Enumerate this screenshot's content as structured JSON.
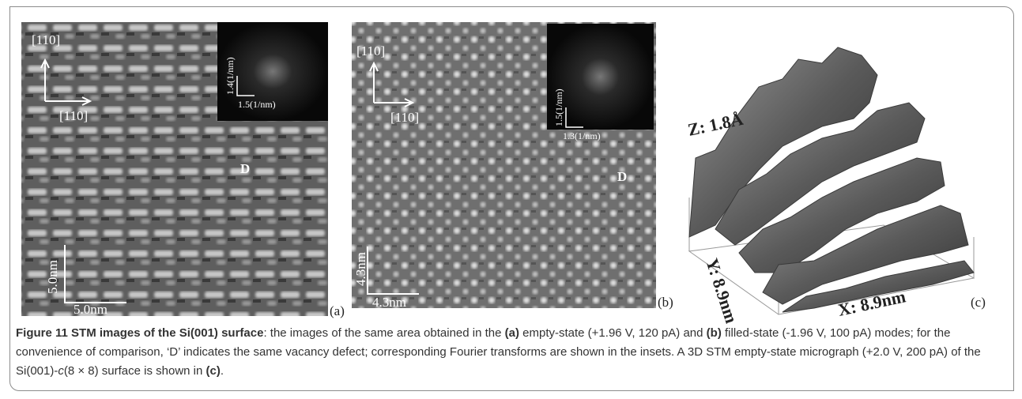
{
  "panel_a": {
    "axis_top": "[110]",
    "axis_right": "[110]",
    "inset_y": "1.4(1/nm)",
    "inset_x": "1.5(1/nm)",
    "defect": "D",
    "scale_y": "5.0nm",
    "scale_x": "5.0nm",
    "label": "(a)"
  },
  "panel_b": {
    "axis_top": "[110]",
    "axis_right": "[110]",
    "inset_y": "1.5(1/nm)",
    "inset_x": "1.3(1/nm)",
    "defect": "D",
    "scale_y": "4.3nm",
    "scale_x": "4.3nm",
    "label": "(b)"
  },
  "panel_c": {
    "z_label": "Z: 1.8Å",
    "y_label": "Y: 8.9nm",
    "x_label": "X: 8.9nm",
    "label": "(c)"
  },
  "caption": {
    "title": "Figure 11 STM images of the Si(001) surface",
    "parts": [
      ": the images of the same area obtained in the ",
      "(a)",
      " empty-state (+1.96 V, 120 pA) and ",
      "(b)",
      " filled-state (-1.96 V, 100 pA) modes; for the convenience of comparison, ‘D’ indicates the same vacancy defect; corresponding Fourier transforms are shown in the insets. A 3D STM empty-state micrograph (+2.0 V, 200 pA) of the Si(001)-",
      "c",
      "(8 × 8) surface is shown in ",
      "(c)",
      "."
    ]
  }
}
